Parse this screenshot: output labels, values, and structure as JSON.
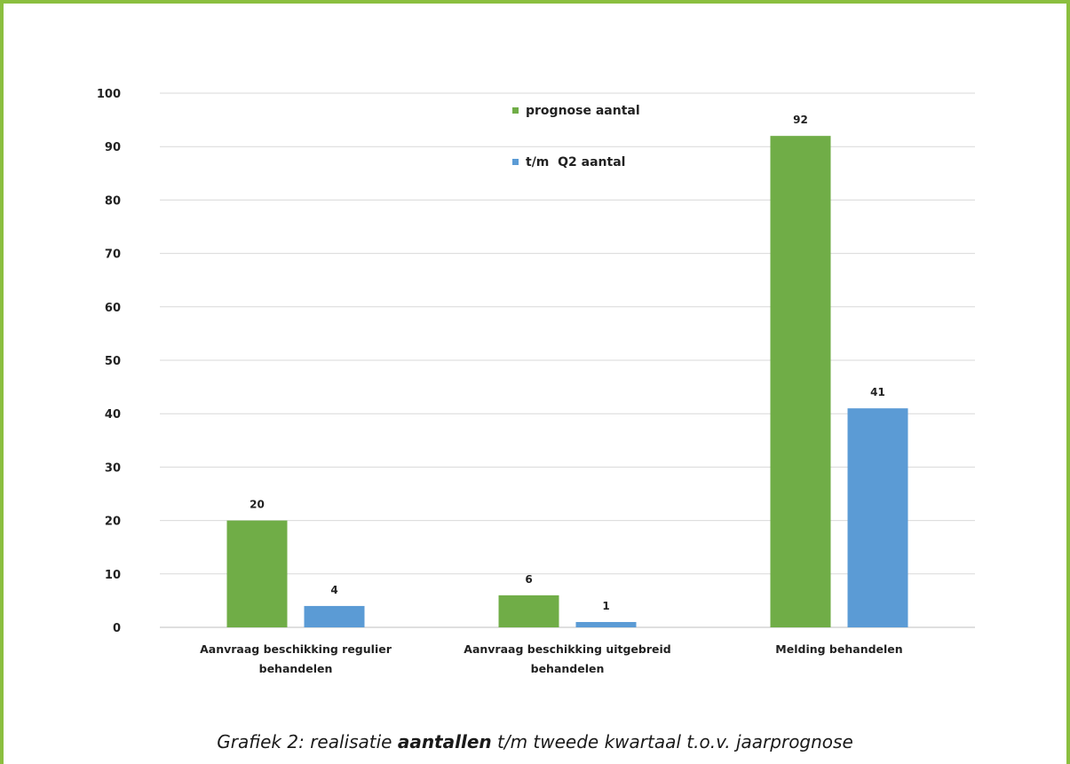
{
  "colors": {
    "accent": "#8bbf3f",
    "series_green": "#70ad47",
    "series_blue": "#5b9bd5",
    "grid": "#d9d9d9",
    "axis": "#bfbfbf"
  },
  "caption": {
    "prefix": "Grafiek 2: realisatie ",
    "bold": "aantallen",
    "suffix": " t/m tweede kwartaal t.o.v. jaarprognose"
  },
  "chart_data": {
    "type": "bar",
    "title": "",
    "xlabel": "",
    "ylabel": "",
    "ylim": [
      0,
      100
    ],
    "yticks": [
      0,
      10,
      20,
      30,
      40,
      50,
      60,
      70,
      80,
      90,
      100
    ],
    "grid": true,
    "legend_position": "top-center",
    "categories": [
      [
        "Aanvraag beschikking regulier",
        "behandelen"
      ],
      [
        "Aanvraag beschikking uitgebreid",
        "behandelen"
      ],
      [
        "Melding behandelen"
      ]
    ],
    "series": [
      {
        "name": "prognose aantal",
        "color": "#70ad47",
        "values": [
          20,
          6,
          92
        ]
      },
      {
        "name": "t/m  Q2 aantal",
        "color": "#5b9bd5",
        "values": [
          4,
          1,
          41
        ]
      }
    ]
  }
}
